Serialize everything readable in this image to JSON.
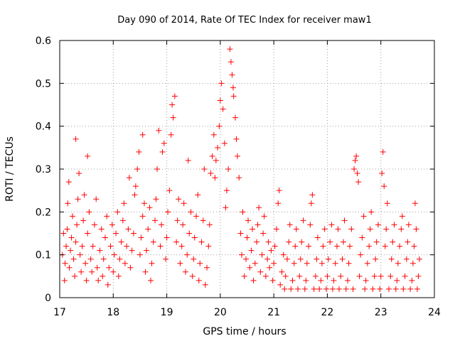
{
  "chart_data": {
    "type": "scatter",
    "title": "Day 090 of 2014, Rate Of TEC Index for receiver maw1",
    "xlabel": "GPS time / hours",
    "ylabel": "ROTI / TECUs",
    "xlim": [
      17,
      24
    ],
    "ylim": [
      0,
      0.6
    ],
    "x_ticks": [
      17,
      18,
      19,
      20,
      21,
      22,
      23,
      24
    ],
    "x_tick_labels": [
      "17",
      "18",
      "19",
      "20",
      "21",
      "22",
      "23",
      "24"
    ],
    "y_ticks": [
      0,
      0.1,
      0.2,
      0.3,
      0.4,
      0.5,
      0.6
    ],
    "y_tick_labels": [
      "0",
      "0.1",
      "0.2",
      "0.3",
      "0.4",
      "0.5",
      "0.6"
    ],
    "grid": true,
    "marker": "+",
    "color": "#ff0000",
    "series": [
      {
        "name": "maw1",
        "points": [
          [
            17.05,
            0.1
          ],
          [
            17.07,
            0.15
          ],
          [
            17.09,
            0.04
          ],
          [
            17.1,
            0.08
          ],
          [
            17.12,
            0.12
          ],
          [
            17.14,
            0.16
          ],
          [
            17.15,
            0.22
          ],
          [
            17.17,
            0.27
          ],
          [
            17.18,
            0.07
          ],
          [
            17.2,
            0.11
          ],
          [
            17.22,
            0.14
          ],
          [
            17.24,
            0.19
          ],
          [
            17.26,
            0.09
          ],
          [
            17.28,
            0.05
          ],
          [
            17.3,
            0.13
          ],
          [
            17.3,
            0.37
          ],
          [
            17.32,
            0.17
          ],
          [
            17.34,
            0.23
          ],
          [
            17.36,
            0.29
          ],
          [
            17.38,
            0.1
          ],
          [
            17.4,
            0.06
          ],
          [
            17.42,
            0.12
          ],
          [
            17.44,
            0.18
          ],
          [
            17.46,
            0.24
          ],
          [
            17.48,
            0.08
          ],
          [
            17.5,
            0.04
          ],
          [
            17.52,
            0.15
          ],
          [
            17.52,
            0.33
          ],
          [
            17.55,
            0.2
          ],
          [
            17.58,
            0.09
          ],
          [
            17.6,
            0.06
          ],
          [
            17.62,
            0.12
          ],
          [
            17.65,
            0.17
          ],
          [
            17.68,
            0.23
          ],
          [
            17.7,
            0.07
          ],
          [
            17.72,
            0.04
          ],
          [
            17.75,
            0.11
          ],
          [
            17.78,
            0.16
          ],
          [
            17.8,
            0.05
          ],
          [
            17.82,
            0.09
          ],
          [
            17.85,
            0.14
          ],
          [
            17.88,
            0.19
          ],
          [
            17.9,
            0.03
          ],
          [
            17.92,
            0.07
          ],
          [
            17.95,
            0.12
          ],
          [
            17.98,
            0.17
          ],
          [
            18.0,
            0.06
          ],
          [
            18.02,
            0.1
          ],
          [
            18.05,
            0.15
          ],
          [
            18.08,
            0.2
          ],
          [
            18.1,
            0.05
          ],
          [
            18.12,
            0.09
          ],
          [
            18.15,
            0.13
          ],
          [
            18.18,
            0.18
          ],
          [
            18.2,
            0.22
          ],
          [
            18.22,
            0.08
          ],
          [
            18.25,
            0.12
          ],
          [
            18.28,
            0.16
          ],
          [
            18.3,
            0.28
          ],
          [
            18.32,
            0.07
          ],
          [
            18.35,
            0.11
          ],
          [
            18.38,
            0.15
          ],
          [
            18.4,
            0.24
          ],
          [
            18.42,
            0.26
          ],
          [
            18.45,
            0.3
          ],
          [
            18.48,
            0.34
          ],
          [
            18.5,
            0.1
          ],
          [
            18.52,
            0.14
          ],
          [
            18.55,
            0.19
          ],
          [
            18.55,
            0.38
          ],
          [
            18.58,
            0.22
          ],
          [
            18.6,
            0.06
          ],
          [
            18.62,
            0.11
          ],
          [
            18.65,
            0.16
          ],
          [
            18.68,
            0.21
          ],
          [
            18.7,
            0.04
          ],
          [
            18.72,
            0.08
          ],
          [
            18.75,
            0.13
          ],
          [
            18.78,
            0.18
          ],
          [
            18.8,
            0.23
          ],
          [
            18.82,
            0.3
          ],
          [
            18.85,
            0.39
          ],
          [
            18.88,
            0.12
          ],
          [
            18.9,
            0.17
          ],
          [
            18.92,
            0.34
          ],
          [
            18.95,
            0.36
          ],
          [
            18.98,
            0.09
          ],
          [
            19.0,
            0.14
          ],
          [
            19.02,
            0.2
          ],
          [
            19.05,
            0.25
          ],
          [
            19.08,
            0.38
          ],
          [
            19.1,
            0.45
          ],
          [
            19.12,
            0.42
          ],
          [
            19.15,
            0.47
          ],
          [
            19.18,
            0.13
          ],
          [
            19.2,
            0.18
          ],
          [
            19.22,
            0.23
          ],
          [
            19.25,
            0.08
          ],
          [
            19.28,
            0.12
          ],
          [
            19.3,
            0.17
          ],
          [
            19.32,
            0.22
          ],
          [
            19.35,
            0.06
          ],
          [
            19.38,
            0.1
          ],
          [
            19.4,
            0.32
          ],
          [
            19.42,
            0.15
          ],
          [
            19.45,
            0.2
          ],
          [
            19.48,
            0.05
          ],
          [
            19.5,
            0.09
          ],
          [
            19.52,
            0.14
          ],
          [
            19.55,
            0.19
          ],
          [
            19.58,
            0.24
          ],
          [
            19.6,
            0.04
          ],
          [
            19.62,
            0.08
          ],
          [
            19.65,
            0.13
          ],
          [
            19.68,
            0.18
          ],
          [
            19.7,
            0.3
          ],
          [
            19.72,
            0.03
          ],
          [
            19.75,
            0.07
          ],
          [
            19.78,
            0.12
          ],
          [
            19.8,
            0.17
          ],
          [
            19.82,
            0.29
          ],
          [
            19.85,
            0.33
          ],
          [
            19.88,
            0.38
          ],
          [
            19.9,
            0.28
          ],
          [
            19.92,
            0.32
          ],
          [
            19.95,
            0.35
          ],
          [
            19.98,
            0.4
          ],
          [
            20.0,
            0.46
          ],
          [
            20.02,
            0.5
          ],
          [
            20.05,
            0.44
          ],
          [
            20.08,
            0.36
          ],
          [
            20.1,
            0.21
          ],
          [
            20.12,
            0.25
          ],
          [
            20.15,
            0.3
          ],
          [
            20.18,
            0.58
          ],
          [
            20.2,
            0.55
          ],
          [
            20.22,
            0.52
          ],
          [
            20.24,
            0.49
          ],
          [
            20.25,
            0.47
          ],
          [
            20.28,
            0.42
          ],
          [
            20.3,
            0.37
          ],
          [
            20.32,
            0.33
          ],
          [
            20.35,
            0.28
          ],
          [
            20.38,
            0.15
          ],
          [
            20.4,
            0.1
          ],
          [
            20.42,
            0.2
          ],
          [
            20.45,
            0.05
          ],
          [
            20.48,
            0.09
          ],
          [
            20.5,
            0.14
          ],
          [
            20.52,
            0.18
          ],
          [
            20.55,
            0.07
          ],
          [
            20.58,
            0.11
          ],
          [
            20.6,
            0.16
          ],
          [
            20.62,
            0.04
          ],
          [
            20.65,
            0.08
          ],
          [
            20.68,
            0.13
          ],
          [
            20.7,
            0.17
          ],
          [
            20.72,
            0.21
          ],
          [
            20.75,
            0.06
          ],
          [
            20.78,
            0.1
          ],
          [
            20.8,
            0.15
          ],
          [
            20.82,
            0.19
          ],
          [
            20.85,
            0.05
          ],
          [
            20.88,
            0.09
          ],
          [
            20.9,
            0.13
          ],
          [
            20.92,
            0.07
          ],
          [
            20.95,
            0.11
          ],
          [
            20.98,
            0.04
          ],
          [
            21.0,
            0.08
          ],
          [
            21.02,
            0.12
          ],
          [
            21.05,
            0.16
          ],
          [
            21.08,
            0.22
          ],
          [
            21.1,
            0.25
          ],
          [
            21.12,
            0.03
          ],
          [
            21.15,
            0.06
          ],
          [
            21.18,
            0.1
          ],
          [
            21.2,
            0.02
          ],
          [
            21.22,
            0.05
          ],
          [
            21.25,
            0.09
          ],
          [
            21.28,
            0.13
          ],
          [
            21.3,
            0.17
          ],
          [
            21.32,
            0.02
          ],
          [
            21.35,
            0.04
          ],
          [
            21.38,
            0.08
          ],
          [
            21.4,
            0.12
          ],
          [
            21.42,
            0.16
          ],
          [
            21.45,
            0.02
          ],
          [
            21.48,
            0.05
          ],
          [
            21.5,
            0.09
          ],
          [
            21.52,
            0.13
          ],
          [
            21.55,
            0.18
          ],
          [
            21.58,
            0.02
          ],
          [
            21.6,
            0.04
          ],
          [
            21.62,
            0.08
          ],
          [
            21.65,
            0.12
          ],
          [
            21.68,
            0.17
          ],
          [
            21.7,
            0.22
          ],
          [
            21.72,
            0.24
          ],
          [
            21.75,
            0.02
          ],
          [
            21.78,
            0.05
          ],
          [
            21.8,
            0.09
          ],
          [
            21.82,
            0.14
          ],
          [
            21.85,
            0.02
          ],
          [
            21.88,
            0.04
          ],
          [
            21.9,
            0.08
          ],
          [
            21.92,
            0.12
          ],
          [
            21.95,
            0.16
          ],
          [
            21.98,
            0.02
          ],
          [
            22.0,
            0.05
          ],
          [
            22.02,
            0.09
          ],
          [
            22.05,
            0.13
          ],
          [
            22.08,
            0.17
          ],
          [
            22.1,
            0.02
          ],
          [
            22.12,
            0.04
          ],
          [
            22.15,
            0.08
          ],
          [
            22.18,
            0.12
          ],
          [
            22.2,
            0.16
          ],
          [
            22.22,
            0.02
          ],
          [
            22.25,
            0.05
          ],
          [
            22.28,
            0.09
          ],
          [
            22.3,
            0.13
          ],
          [
            22.32,
            0.18
          ],
          [
            22.35,
            0.02
          ],
          [
            22.38,
            0.04
          ],
          [
            22.4,
            0.08
          ],
          [
            22.42,
            0.12
          ],
          [
            22.45,
            0.16
          ],
          [
            22.48,
            0.02
          ],
          [
            22.5,
            0.3
          ],
          [
            22.52,
            0.32
          ],
          [
            22.54,
            0.33
          ],
          [
            22.56,
            0.29
          ],
          [
            22.58,
            0.27
          ],
          [
            22.6,
            0.05
          ],
          [
            22.62,
            0.1
          ],
          [
            22.65,
            0.14
          ],
          [
            22.68,
            0.19
          ],
          [
            22.7,
            0.02
          ],
          [
            22.72,
            0.04
          ],
          [
            22.75,
            0.08
          ],
          [
            22.78,
            0.12
          ],
          [
            22.8,
            0.16
          ],
          [
            22.82,
            0.2
          ],
          [
            22.85,
            0.02
          ],
          [
            22.88,
            0.05
          ],
          [
            22.9,
            0.09
          ],
          [
            22.92,
            0.13
          ],
          [
            22.95,
            0.17
          ],
          [
            22.98,
            0.02
          ],
          [
            23.0,
            0.05
          ],
          [
            23.02,
            0.29
          ],
          [
            23.04,
            0.34
          ],
          [
            23.06,
            0.26
          ],
          [
            23.08,
            0.12
          ],
          [
            23.1,
            0.16
          ],
          [
            23.12,
            0.22
          ],
          [
            23.15,
            0.02
          ],
          [
            23.18,
            0.05
          ],
          [
            23.2,
            0.09
          ],
          [
            23.22,
            0.13
          ],
          [
            23.25,
            0.17
          ],
          [
            23.28,
            0.02
          ],
          [
            23.3,
            0.04
          ],
          [
            23.32,
            0.08
          ],
          [
            23.35,
            0.12
          ],
          [
            23.38,
            0.16
          ],
          [
            23.4,
            0.19
          ],
          [
            23.42,
            0.02
          ],
          [
            23.45,
            0.05
          ],
          [
            23.48,
            0.09
          ],
          [
            23.5,
            0.13
          ],
          [
            23.52,
            0.17
          ],
          [
            23.55,
            0.02
          ],
          [
            23.58,
            0.04
          ],
          [
            23.6,
            0.08
          ],
          [
            23.62,
            0.12
          ],
          [
            23.64,
            0.22
          ],
          [
            23.66,
            0.16
          ],
          [
            23.68,
            0.02
          ],
          [
            23.7,
            0.05
          ],
          [
            23.72,
            0.09
          ]
        ]
      }
    ]
  }
}
